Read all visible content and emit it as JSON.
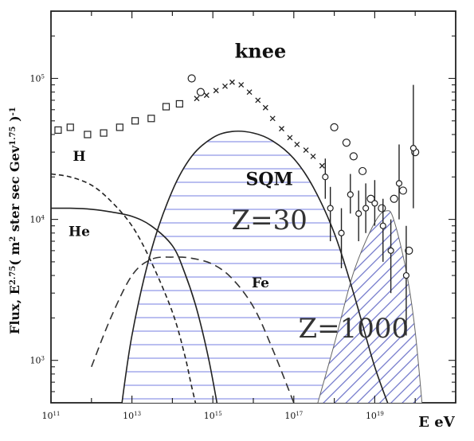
{
  "chart_data": {
    "type": "line",
    "title": "",
    "xlabel": "E eV",
    "ylabel": "Flux, E2.75( m2 ster sec Gev1.75 )-1",
    "ylabel_parts": {
      "prefix": "Flux, E",
      "exp1": "2.75",
      "mid1": "( m",
      "exp2": "2",
      "mid2": " ster  sec Gev",
      "exp3": "1.75",
      "suffix": " )",
      "exp4": "-1"
    },
    "x_scale": "log",
    "y_scale": "log",
    "xlim": [
      100000000000.0,
      1e+21
    ],
    "ylim": [
      500,
      300000
    ],
    "x_ticks": [
      {
        "value": 100000000000.0,
        "base": "10",
        "exp": "11"
      },
      {
        "value": 10000000000000.0,
        "base": "10",
        "exp": "13"
      },
      {
        "value": 1000000000000000.0,
        "base": "10",
        "exp": "15"
      },
      {
        "value": 1e+17,
        "base": "10",
        "exp": "17"
      },
      {
        "value": 1e+19,
        "base": "10",
        "exp": "19"
      }
    ],
    "y_ticks": [
      {
        "value": 1000,
        "base": "10",
        "exp": "3"
      },
      {
        "value": 10000,
        "base": "10",
        "exp": "4"
      },
      {
        "value": 100000,
        "base": "10",
        "exp": "5"
      }
    ],
    "annotations": [
      {
        "text": "knee",
        "x": 1.5e+16,
        "y": 140000,
        "style": "bold",
        "size": 24
      },
      {
        "text": "H",
        "x": 500000000000.0,
        "y": 26000,
        "style": "bold",
        "size": 17
      },
      {
        "text": "He",
        "x": 500000000000.0,
        "y": 7600,
        "style": "bold",
        "size": 17
      },
      {
        "text": "Fe",
        "x": 1.5e+16,
        "y": 3300,
        "style": "bold",
        "size": 17
      },
      {
        "text": "SQM",
        "x": 2.5e+16,
        "y": 17500,
        "style": "bold",
        "size": 22
      },
      {
        "text": "Z=30",
        "x": 2.5e+16,
        "y": 8500,
        "style": "normal",
        "size": 34
      },
      {
        "text": "Z=1000",
        "x": 3e+18,
        "y": 1450,
        "style": "normal",
        "size": 34
      }
    ],
    "series": [
      {
        "style": "dashed",
        "color": "#222222",
        "x": [
          100000000000.0,
          300000000000.0,
          1000000000000.0,
          3000000000000.0,
          10000000000000.0,
          30000000000000.0,
          100000000000000.0,
          200000000000000.0,
          300000000000000.0,
          500000000000000.0
        ],
        "y": [
          21000,
          20000,
          17500,
          13500,
          9000,
          5000,
          2200,
          1100,
          650,
          350
        ]
      },
      {
        "style": "solid",
        "color": "#222222",
        "x": [
          100000000000.0,
          300000000000.0,
          1000000000000.0,
          3000000000000.0,
          10000000000000.0,
          30000000000000.0,
          100000000000000.0,
          200000000000000.0,
          400000000000000.0,
          800000000000000.0,
          1500000000000000.0
        ],
        "y": [
          12000,
          12000,
          11800,
          11300,
          10500,
          9000,
          6500,
          4200,
          2300,
          1000,
          380
        ]
      },
      {
        "style": "longdash",
        "color": "#333333",
        "x": [
          1000000000000.0,
          3000000000000.0,
          10000000000000.0,
          30000000000000.0,
          100000000000000.0,
          300000000000000.0,
          1000000000000000.0,
          3000000000000000.0,
          1e+16,
          3e+16,
          1e+17,
          1.5e+17
        ],
        "y": [
          900,
          2000,
          4000,
          5200,
          5400,
          5300,
          4800,
          3800,
          2400,
          1200,
          500,
          380
        ]
      },
      {
        "style": "solid",
        "color": "#222222",
        "fill": "#8c94e6",
        "fill_pattern": "horizontal",
        "x": [
          5000000000000.0,
          10000000000000.0,
          30000000000000.0,
          100000000000000.0,
          300000000000000.0,
          1000000000000000.0,
          3000000000000000.0,
          1e+16,
          3e+16,
          1e+17,
          3e+17,
          1e+18,
          3e+18,
          1e+19,
          3e+19
        ],
        "y": [
          380,
          1500,
          6000,
          16000,
          28000,
          38000,
          42000,
          41000,
          36000,
          27000,
          17000,
          8000,
          3000,
          900,
          380
        ]
      },
      {
        "style": "thin",
        "color": "#666666",
        "fill": "#6a70c8",
        "fill_pattern": "diagonal",
        "x": [
          3e+17,
          1e+18,
          3e+18,
          1e+19,
          2e+19,
          3e+19,
          6e+19,
          1e+20,
          1.6e+20
        ],
        "y": [
          380,
          1300,
          4200,
          9500,
          11500,
          9800,
          4300,
          1600,
          380
        ]
      },
      {
        "style": "markers-square",
        "color": "#222222",
        "x": [
          150000000000.0,
          300000000000.0,
          800000000000.0,
          2000000000000.0,
          5000000000000.0,
          12000000000000.0,
          30000000000000.0,
          70000000000000.0,
          150000000000000.0
        ],
        "y": [
          43000,
          45000,
          40000,
          41000,
          45000,
          50000,
          52000,
          63000,
          66000
        ]
      },
      {
        "style": "markers-circle",
        "color": "#222222",
        "x": [
          300000000000000.0,
          500000000000000.0,
          1e+18,
          2e+18,
          3e+18,
          5e+18,
          8e+18,
          1.5e+19,
          3e+19,
          5e+19,
          7e+19,
          1e+20
        ],
        "y": [
          100000,
          80000,
          45000,
          35000,
          28000,
          22000,
          14000,
          12000,
          14000,
          16000,
          6000,
          30000
        ]
      },
      {
        "style": "markers-cross",
        "color": "#222222",
        "x": [
          400000000000000.0,
          700000000000000.0,
          1200000000000000.0,
          2000000000000000.0,
          3000000000000000.0,
          5000000000000000.0,
          8000000000000000.0,
          1.3e+16,
          2e+16,
          3e+16,
          5e+16,
          8e+16,
          1.2e+17,
          2e+17,
          3e+17,
          5e+17
        ],
        "y": [
          72000,
          76000,
          82000,
          88000,
          94000,
          90000,
          80000,
          70000,
          62000,
          52000,
          44000,
          38000,
          34000,
          31000,
          28000,
          24000
        ]
      },
      {
        "style": "markers-errorbar",
        "color": "#222222",
        "x": [
          6e+17,
          8e+17,
          1.5e+18,
          2.5e+18,
          4e+18,
          6e+18,
          1e+19,
          1.6e+19,
          2.5e+19,
          4e+19,
          6e+19,
          9e+19
        ],
        "y": [
          20000,
          12000,
          8000,
          15000,
          11000,
          12000,
          13000,
          9000,
          6000,
          18000,
          4000,
          32000
        ],
        "err_low": [
          14000,
          7000,
          4500,
          11000,
          7000,
          8000,
          9000,
          5000,
          3000,
          10000,
          1500,
          12000
        ],
        "err_high": [
          27000,
          17000,
          12000,
          21000,
          16000,
          18000,
          19000,
          14000,
          10000,
          34000,
          9000,
          90000
        ]
      }
    ]
  }
}
